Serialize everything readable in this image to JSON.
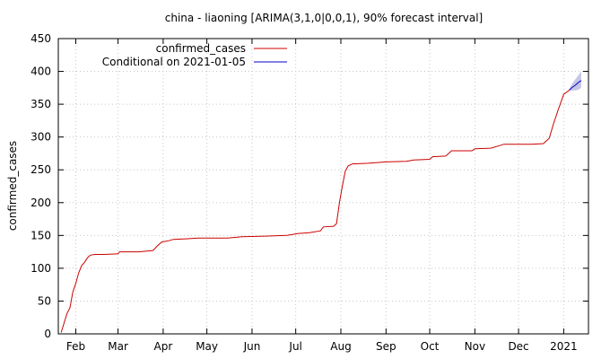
{
  "chart_data": {
    "type": "line",
    "title": "china - liaoning [ARIMA(3,1,0|0,0,1), 90% forecast interval]",
    "xlabel": "",
    "ylabel": "confirmed_cases",
    "ylim": [
      0,
      450
    ],
    "yticks": [
      "0",
      "50",
      "100",
      "150",
      "200",
      "250",
      "300",
      "350",
      "400",
      "450"
    ],
    "xlim": [
      "2020-01-20",
      "2021-01-18"
    ],
    "xticks": [
      {
        "label": "Feb",
        "date": "2020-02-01"
      },
      {
        "label": "Mar",
        "date": "2020-03-01"
      },
      {
        "label": "Apr",
        "date": "2020-04-01"
      },
      {
        "label": "May",
        "date": "2020-05-01"
      },
      {
        "label": "Jun",
        "date": "2020-06-01"
      },
      {
        "label": "Jul",
        "date": "2020-07-01"
      },
      {
        "label": "Aug",
        "date": "2020-08-01"
      },
      {
        "label": "Sep",
        "date": "2020-09-01"
      },
      {
        "label": "Oct",
        "date": "2020-10-01"
      },
      {
        "label": "Nov",
        "date": "2020-11-01"
      },
      {
        "label": "Dec",
        "date": "2020-12-01"
      },
      {
        "label": "2021",
        "date": "2021-01-01"
      }
    ],
    "grid": true,
    "legend_position": "top-left",
    "series": [
      {
        "name": "confirmed_cases",
        "color": "#cc0000",
        "points": [
          [
            "2020-01-22",
            2
          ],
          [
            "2020-01-24",
            17
          ],
          [
            "2020-01-26",
            31
          ],
          [
            "2020-01-28",
            40
          ],
          [
            "2020-01-30",
            64
          ],
          [
            "2020-02-01",
            77
          ],
          [
            "2020-02-03",
            93
          ],
          [
            "2020-02-05",
            104
          ],
          [
            "2020-02-07",
            109
          ],
          [
            "2020-02-09",
            116
          ],
          [
            "2020-02-11",
            120
          ],
          [
            "2020-02-14",
            121
          ],
          [
            "2020-02-20",
            121
          ],
          [
            "2020-03-01",
            122
          ],
          [
            "2020-03-02",
            125
          ],
          [
            "2020-03-15",
            125
          ],
          [
            "2020-03-25",
            127
          ],
          [
            "2020-03-28",
            134
          ],
          [
            "2020-03-31",
            140
          ],
          [
            "2020-04-05",
            142
          ],
          [
            "2020-04-08",
            144
          ],
          [
            "2020-04-18",
            145
          ],
          [
            "2020-04-25",
            146
          ],
          [
            "2020-05-15",
            146
          ],
          [
            "2020-05-25",
            148
          ],
          [
            "2020-06-10",
            149
          ],
          [
            "2020-06-25",
            150
          ],
          [
            "2020-07-03",
            153
          ],
          [
            "2020-07-10",
            154
          ],
          [
            "2020-07-18",
            157
          ],
          [
            "2020-07-20",
            163
          ],
          [
            "2020-07-27",
            164
          ],
          [
            "2020-07-29",
            168
          ],
          [
            "2020-07-31",
            200
          ],
          [
            "2020-08-02",
            225
          ],
          [
            "2020-08-04",
            248
          ],
          [
            "2020-08-06",
            256
          ],
          [
            "2020-08-09",
            259
          ],
          [
            "2020-08-20",
            260
          ],
          [
            "2020-09-01",
            262
          ],
          [
            "2020-09-15",
            263
          ],
          [
            "2020-09-20",
            265
          ],
          [
            "2020-10-01",
            266
          ],
          [
            "2020-10-03",
            270
          ],
          [
            "2020-10-12",
            271
          ],
          [
            "2020-10-16",
            279
          ],
          [
            "2020-10-30",
            279
          ],
          [
            "2020-11-01",
            282
          ],
          [
            "2020-11-12",
            283
          ],
          [
            "2020-11-18",
            287
          ],
          [
            "2020-11-21",
            289
          ],
          [
            "2020-12-10",
            289
          ],
          [
            "2020-12-18",
            290
          ],
          [
            "2020-12-22",
            298
          ],
          [
            "2020-12-25",
            320
          ],
          [
            "2020-12-28",
            340
          ],
          [
            "2021-01-01",
            365
          ],
          [
            "2021-01-04",
            370
          ],
          [
            "2021-01-05",
            372
          ]
        ]
      },
      {
        "name": "Conditional on 2021-01-05",
        "color": "#0000cc",
        "band_color": "#b8b8e0",
        "points": [
          [
            "2021-01-05",
            372
          ],
          [
            "2021-01-07",
            376
          ],
          [
            "2021-01-09",
            379
          ],
          [
            "2021-01-11",
            383
          ],
          [
            "2021-01-13",
            386
          ]
        ],
        "interval_90": [
          [
            "2021-01-05",
            370,
            374
          ],
          [
            "2021-01-07",
            371,
            382
          ],
          [
            "2021-01-09",
            371,
            388
          ],
          [
            "2021-01-11",
            372,
            394
          ],
          [
            "2021-01-13",
            375,
            400
          ]
        ]
      }
    ]
  }
}
